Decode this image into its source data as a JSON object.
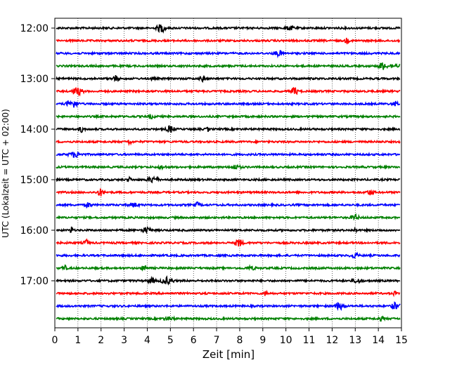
{
  "chart_data": {
    "type": "line",
    "title": "",
    "xlabel": "Zeit  [min]",
    "ylabel": "UTC (Lokalzeit = UTC + 02:00)",
    "xlim": [
      0,
      15
    ],
    "x_ticks": [
      "0",
      "1",
      "2",
      "3",
      "4",
      "5",
      "6",
      "7",
      "8",
      "9",
      "10",
      "11",
      "12",
      "13",
      "14",
      "15"
    ],
    "y_ticks": [
      "12:00",
      "13:00",
      "14:00",
      "15:00",
      "16:00",
      "17:00"
    ],
    "grid": "vertical dotted",
    "trace_interval_minutes": 15,
    "start_hour": "12:00",
    "colors": [
      "#000000",
      "#ff0000",
      "#0000ff",
      "#008000"
    ],
    "traces": [
      {
        "time": "12:00",
        "color": "#000000"
      },
      {
        "time": "12:15",
        "color": "#ff0000"
      },
      {
        "time": "12:30",
        "color": "#0000ff"
      },
      {
        "time": "12:45",
        "color": "#008000"
      },
      {
        "time": "13:00",
        "color": "#000000"
      },
      {
        "time": "13:15",
        "color": "#ff0000"
      },
      {
        "time": "13:30",
        "color": "#0000ff"
      },
      {
        "time": "13:45",
        "color": "#008000"
      },
      {
        "time": "14:00",
        "color": "#000000"
      },
      {
        "time": "14:15",
        "color": "#ff0000"
      },
      {
        "time": "14:30",
        "color": "#0000ff"
      },
      {
        "time": "14:45",
        "color": "#008000"
      },
      {
        "time": "15:00",
        "color": "#000000"
      },
      {
        "time": "15:15",
        "color": "#ff0000"
      },
      {
        "time": "15:30",
        "color": "#0000ff"
      },
      {
        "time": "15:45",
        "color": "#008000"
      },
      {
        "time": "16:00",
        "color": "#000000"
      },
      {
        "time": "16:15",
        "color": "#ff0000"
      },
      {
        "time": "16:30",
        "color": "#0000ff"
      },
      {
        "time": "16:45",
        "color": "#008000"
      },
      {
        "time": "17:00",
        "color": "#000000"
      },
      {
        "time": "17:15",
        "color": "#ff0000"
      },
      {
        "time": "17:30",
        "color": "#0000ff"
      },
      {
        "time": "17:45",
        "color": "#008000"
      }
    ]
  }
}
